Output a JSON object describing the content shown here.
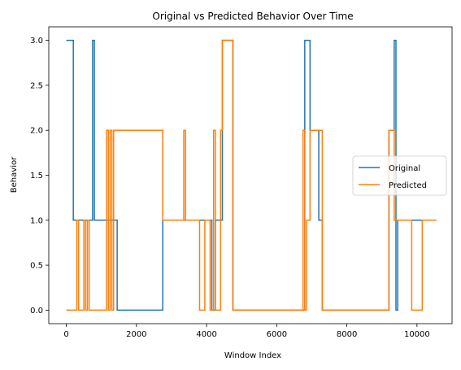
{
  "chart_data": {
    "type": "line",
    "title": "Original vs Predicted Behavior Over Time",
    "xlabel": "Window Index",
    "ylabel": "Behavior",
    "xlim": [
      -500,
      11000
    ],
    "ylim": [
      -0.15,
      3.15
    ],
    "xticks": [
      0,
      2000,
      4000,
      6000,
      8000,
      10000
    ],
    "xtick_labels": [
      "0",
      "2000",
      "4000",
      "6000",
      "8000",
      "10000"
    ],
    "yticks": [
      0.0,
      0.5,
      1.0,
      1.5,
      2.0,
      2.5,
      3.0
    ],
    "ytick_labels": [
      "0.0",
      "0.5",
      "1.0",
      "1.5",
      "2.0",
      "2.5",
      "3.0"
    ],
    "grid": false,
    "legend_position": "center-right",
    "series": [
      {
        "name": "Original",
        "color": "#1f77b4",
        "step": true,
        "x": [
          0,
          200,
          750,
          800,
          1450,
          2750,
          4000,
          4150,
          4250,
          4450,
          4750,
          6800,
          6950,
          7200,
          7300,
          9200,
          9350,
          9400,
          9450,
          9800,
          10000,
          10550
        ],
        "y": [
          3,
          1,
          3,
          1,
          0,
          1,
          1,
          0,
          1,
          3,
          0,
          3,
          2,
          1,
          0,
          2,
          3,
          0,
          1,
          1,
          1,
          1
        ]
      },
      {
        "name": "Predicted",
        "color": "#ff7f0e",
        "step": true,
        "x": [
          0,
          300,
          350,
          500,
          550,
          600,
          650,
          700,
          1150,
          1200,
          1250,
          1300,
          1350,
          2750,
          3350,
          3400,
          3800,
          3950,
          4100,
          4200,
          4250,
          4400,
          4450,
          4750,
          6750,
          6800,
          6850,
          6950,
          7050,
          7300,
          9200,
          9350,
          9450,
          9850,
          10150,
          10550
        ],
        "y": [
          0,
          1,
          0,
          1,
          0,
          1,
          0,
          0,
          2,
          0,
          2,
          0,
          2,
          1,
          2,
          1,
          0,
          1,
          0,
          2,
          0,
          2,
          3,
          0,
          2,
          0,
          1,
          2,
          2,
          0,
          2,
          1,
          1,
          0,
          1,
          1
        ]
      }
    ]
  }
}
